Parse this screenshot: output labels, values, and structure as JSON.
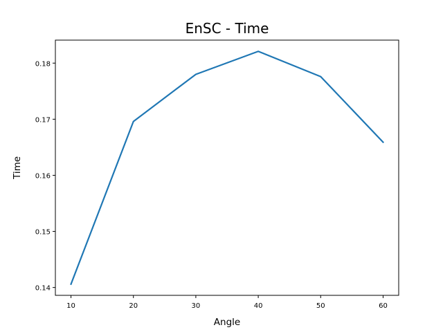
{
  "chart_data": {
    "type": "line",
    "title": "EnSC - Time",
    "xlabel": "Angle",
    "ylabel": "Time",
    "x": [
      10,
      20,
      30,
      40,
      50,
      60
    ],
    "series": [
      {
        "values": [
          0.1406,
          0.1696,
          0.178,
          0.1821,
          0.1776,
          0.1659
        ]
      }
    ],
    "xlim": [
      7.5,
      62.5
    ],
    "ylim": [
      0.1386,
      0.1841
    ],
    "xticks": [
      10,
      20,
      30,
      40,
      50,
      60
    ],
    "yticks": [
      0.14,
      0.15,
      0.16,
      0.17,
      0.18
    ],
    "xtick_labels": [
      "10",
      "20",
      "30",
      "40",
      "50",
      "60"
    ],
    "ytick_labels": [
      "0.14",
      "0.15",
      "0.16",
      "0.17",
      "0.18"
    ],
    "grid": false,
    "colors": {
      "line": "#1f77b4",
      "axes": "#000000"
    }
  }
}
